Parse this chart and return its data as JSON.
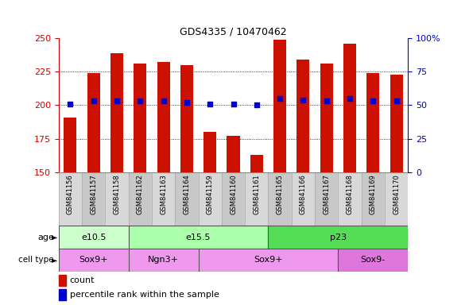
{
  "title": "GDS4335 / 10470462",
  "samples": [
    "GSM841156",
    "GSM841157",
    "GSM841158",
    "GSM841162",
    "GSM841163",
    "GSM841164",
    "GSM841159",
    "GSM841160",
    "GSM841161",
    "GSM841165",
    "GSM841166",
    "GSM841167",
    "GSM841168",
    "GSM841169",
    "GSM841170"
  ],
  "counts": [
    191,
    224,
    239,
    231,
    232,
    230,
    180,
    177,
    163,
    249,
    234,
    231,
    246,
    224,
    223
  ],
  "percentiles": [
    51,
    53,
    53,
    53,
    53,
    52,
    51,
    51,
    50,
    55,
    54,
    53,
    55,
    53,
    53
  ],
  "ylim_left": [
    150,
    250
  ],
  "ylim_right": [
    0,
    100
  ],
  "yticks_left": [
    150,
    175,
    200,
    225,
    250
  ],
  "yticks_right": [
    0,
    25,
    50,
    75,
    100
  ],
  "left_axis_color": "#cc0000",
  "right_axis_color": "#0000cc",
  "bar_color": "#cc1100",
  "dot_color": "#0000cc",
  "grid_color": "#555555",
  "age_groups": [
    {
      "label": "e10.5",
      "start": 0,
      "end": 3
    },
    {
      "label": "e15.5",
      "start": 3,
      "end": 9
    },
    {
      "label": "p23",
      "start": 9,
      "end": 15
    }
  ],
  "age_colors": [
    "#ccffcc",
    "#aaffaa",
    "#55dd55"
  ],
  "cell_type_groups": [
    {
      "label": "Sox9+",
      "start": 0,
      "end": 3
    },
    {
      "label": "Ngn3+",
      "start": 3,
      "end": 6
    },
    {
      "label": "Sox9+",
      "start": 6,
      "end": 12
    },
    {
      "label": "Sox9-",
      "start": 12,
      "end": 15
    }
  ],
  "cell_colors": [
    "#ee99ee",
    "#ee99ee",
    "#ee99ee",
    "#dd77dd"
  ],
  "legend_count_label": "count",
  "legend_pct_label": "percentile rank within the sample",
  "bg_color": "#ffffff"
}
